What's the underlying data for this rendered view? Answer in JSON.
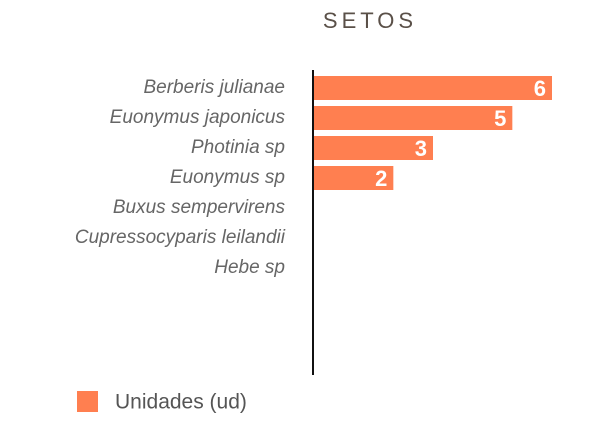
{
  "chart_data": {
    "type": "barh",
    "title": "SETOS",
    "categories": [
      "Berberis julianae",
      "Euonymus japonicus",
      "Photinia sp",
      "Euonymus sp",
      "Buxus sempervirens",
      "Cupressocyparis leilandii",
      "Hebe sp"
    ],
    "series": [
      {
        "name": "Unidades (ud)",
        "color": "#ff7f50",
        "values": [
          6,
          5,
          3,
          2,
          null,
          null,
          null
        ]
      }
    ],
    "xlim": [
      0,
      6
    ]
  }
}
